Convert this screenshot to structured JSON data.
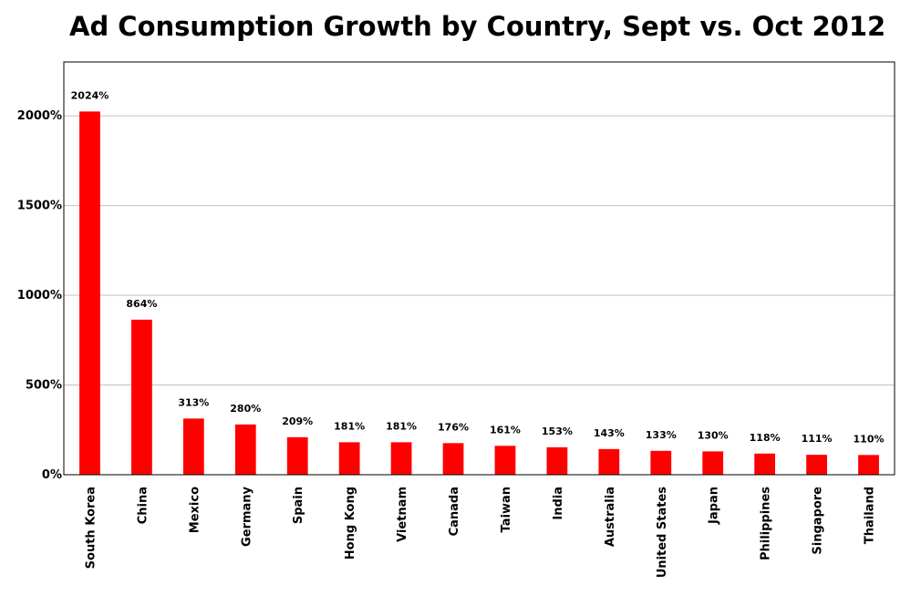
{
  "chart_data": {
    "type": "bar",
    "title": "Ad Consumption Growth by Country, Sept vs. Oct 2012",
    "xlabel": "",
    "ylabel": "",
    "categories": [
      "South Korea",
      "China",
      "Mexico",
      "Germany",
      "Spain",
      "Hong Kong",
      "Vietnam",
      "Canada",
      "Taiwan",
      "India",
      "Australia",
      "United States",
      "Japan",
      "Philippines",
      "Singapore",
      "Thailand"
    ],
    "values": [
      2024,
      864,
      313,
      280,
      209,
      181,
      181,
      176,
      161,
      153,
      143,
      133,
      130,
      118,
      111,
      110
    ],
    "value_labels": [
      "2024%",
      "864%",
      "313%",
      "280%",
      "209%",
      "181%",
      "181%",
      "176%",
      "161%",
      "153%",
      "143%",
      "133%",
      "130%",
      "118%",
      "111%",
      "110%"
    ],
    "yticks": [
      0,
      500,
      1000,
      1500,
      2000
    ],
    "ytick_labels": [
      "0%",
      "500%",
      "1000%",
      "1500%",
      "2000%"
    ],
    "ylim": [
      0,
      2300
    ],
    "grid": true,
    "legend": "none",
    "bar_color": "#ff0000",
    "grid_color": "#c0c0c0"
  }
}
